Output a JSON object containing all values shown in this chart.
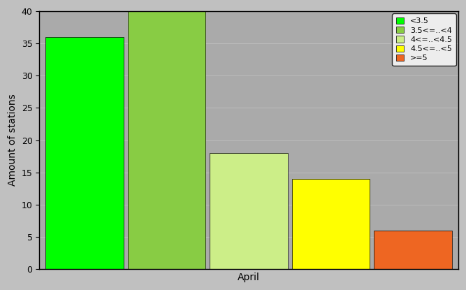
{
  "bars": [
    {
      "label": "<3.5",
      "value": 36,
      "color": "#00FF00"
    },
    {
      "label": "3.5<=..<4",
      "value": 40,
      "color": "#88CC44"
    },
    {
      "label": "4<=..<4.5",
      "value": 18,
      "color": "#CCEE88"
    },
    {
      "label": "4.5<=..<5",
      "value": 14,
      "color": "#FFFF00"
    },
    {
      "label": ">=5",
      "value": 6,
      "color": "#EE6622"
    }
  ],
  "ylabel": "Amount of stations",
  "xlabel": "April",
  "ylim": [
    0,
    40
  ],
  "yticks": [
    0,
    5,
    10,
    15,
    20,
    25,
    30,
    35,
    40
  ],
  "background_color": "#C0C0C0",
  "plot_bg_color": "#AAAAAA",
  "grid_color": "#BBBBBB",
  "bar_width": 0.95,
  "legend_labels": [
    "<3.5",
    "3.5<=..<4",
    "4<=..<4.5",
    "4.5<=..<5",
    ">=5"
  ],
  "legend_colors": [
    "#00FF00",
    "#88CC44",
    "#CCEE88",
    "#FFFF00",
    "#EE6622"
  ]
}
